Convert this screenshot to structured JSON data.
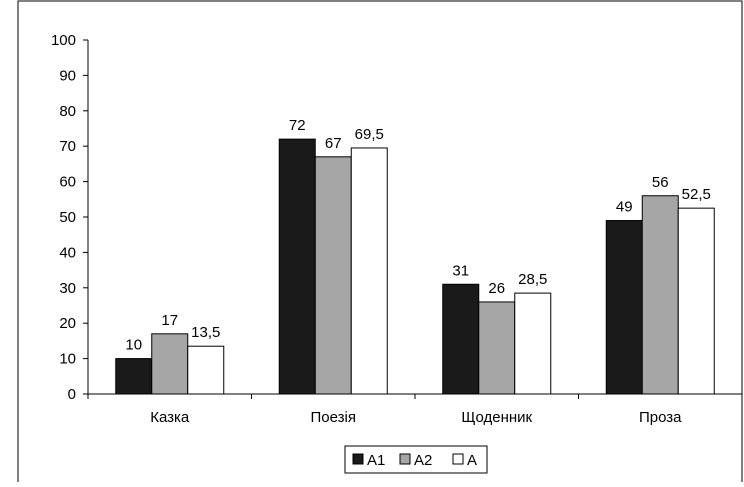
{
  "chart_data": {
    "type": "bar",
    "categories": [
      "Казка",
      "Поезія",
      "Щоденник",
      "Проза"
    ],
    "series": [
      {
        "name": "A1",
        "values": [
          10,
          72,
          31,
          49
        ],
        "data_labels": [
          "10",
          "72",
          "31",
          "49"
        ],
        "color": "#1a1a1a"
      },
      {
        "name": "A2",
        "values": [
          17,
          67,
          26,
          56
        ],
        "data_labels": [
          "17",
          "67",
          "26",
          "56"
        ],
        "color": "#a6a6a6"
      },
      {
        "name": "A",
        "values": [
          13.5,
          69.5,
          28.5,
          52.5
        ],
        "data_labels": [
          "13,5",
          "69,5",
          "28,5",
          "52,5"
        ],
        "color": "#ffffff"
      }
    ],
    "ylim": [
      0,
      100
    ],
    "yticks": [
      "0",
      "10",
      "20",
      "30",
      "40",
      "50",
      "60",
      "70",
      "80",
      "90",
      "100"
    ],
    "grid": false,
    "legend_position": "bottom"
  }
}
